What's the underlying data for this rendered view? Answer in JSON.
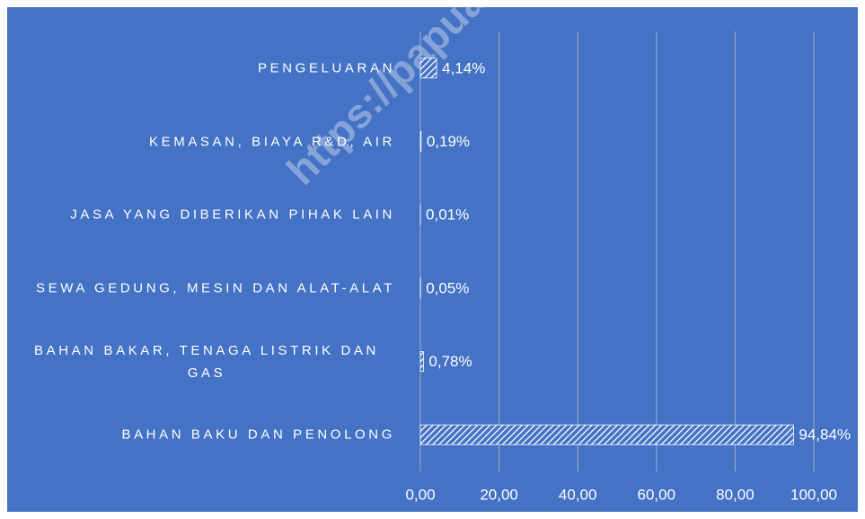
{
  "chart_data": {
    "type": "hbar",
    "categories": [
      "PENGELUARAN",
      "KEMASAN, BIAYA R&D, AIR",
      "JASA YANG DIBERIKAN PIHAK LAIN",
      "SEWA GEDUNG, MESIN DAN ALAT-ALAT",
      "BAHAN BAKAR, TENAGA LISTRIK DAN GAS",
      "BAHAN BAKU DAN PENOLONG"
    ],
    "values": [
      4.14,
      0.19,
      0.01,
      0.05,
      0.78,
      94.84
    ],
    "value_labels": [
      "4,14%",
      "0,19%",
      "0,01%",
      "0,05%",
      "0,78%",
      "94,84%"
    ],
    "color": "#ffffff",
    "background": "#4472c4",
    "xlim": [
      0,
      100
    ],
    "xticks": [
      {
        "value": 0,
        "label": "0,00"
      },
      {
        "value": 20,
        "label": "20,00"
      },
      {
        "value": 40,
        "label": "40,00"
      },
      {
        "value": 60,
        "label": "60,00"
      },
      {
        "value": 80,
        "label": "80,00"
      },
      {
        "value": 100,
        "label": "100,00"
      }
    ],
    "grid": true,
    "watermark": "https://papua.b"
  }
}
